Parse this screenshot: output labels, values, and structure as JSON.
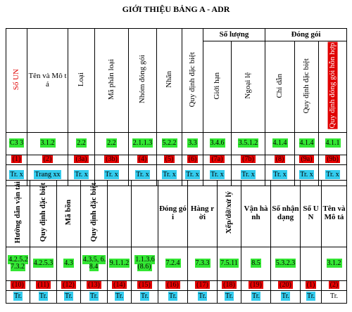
{
  "title": "GIỚI THIỆU BẢNG A - ADR",
  "table1": {
    "groups": [
      "Số lượng",
      "Đóng gói"
    ],
    "headers": [
      "Số UN",
      "Tên và Mô tả",
      "Loại",
      "Mã phân loại",
      "Nhóm đóng gói",
      "Nhãn",
      "Quy định đặc biệt",
      "Giới hạn",
      "Ngoại lệ",
      "Chỉ dẫn",
      "Quy định đặc biệt",
      "Quy định đóng gói hỗn hợp"
    ],
    "rows": [
      [
        "C3 3",
        "3.1.2",
        "2.2",
        "2.2",
        "2.1.1.3",
        "5.2.2",
        "3.3",
        "3.4.6",
        "3.5.1.2",
        "4.1.4",
        "4.1.4",
        "4.1.1"
      ],
      [
        "(1)",
        "(2)",
        "(3a)",
        "(3b)",
        "(4)",
        "(5)",
        "(6)",
        "(7a)",
        "(7b)",
        "(8)",
        "(9a)",
        "(9b)"
      ],
      [
        "Tr. x",
        "Trang xx",
        "Tr. x",
        "Tr. x",
        "Tr. x",
        "Tr. x",
        "Tr. x",
        "Tr. x",
        "Tr. x",
        "Tr. x",
        "Tr. x",
        "Tr. x"
      ]
    ]
  },
  "table2": {
    "headers": [
      "Hướng dẫn vận tải",
      "Quy định đặc biệt",
      "Mã bồn",
      "Quy định đặc biệt",
      "",
      "",
      "Đóng gói",
      "Hàng rời",
      "Xếp/dỡ/xử lý",
      "Vận hành",
      "Số nhận dạng",
      "Số UN",
      "Tên và Mô tả"
    ],
    "rows": [
      [
        "4.2.5.2 7.3.2",
        "4.2.5.3",
        "4.3",
        "4.3.5, 6.8.4",
        "9.1.1.2",
        "1.1.3.6 (8.6)",
        "7.2.4",
        "7.3.3",
        "7.5.11",
        "8.5",
        "5.3.2.3",
        "",
        "3.1.2"
      ],
      [
        "(10)",
        "(11)",
        "(12)",
        "(13)",
        "(14)",
        "(15)",
        "(16)",
        "(17)",
        "(18)",
        "(19)",
        "(20)",
        "(1)",
        "(2)"
      ],
      [
        "Tr.",
        "Tr.",
        "Tr.",
        "Tr.",
        "Tr.",
        "Tr.",
        "Tr.",
        "Tr.",
        "Tr.",
        "Tr.",
        "Tr.",
        "Tr.",
        "Tr."
      ]
    ]
  }
}
